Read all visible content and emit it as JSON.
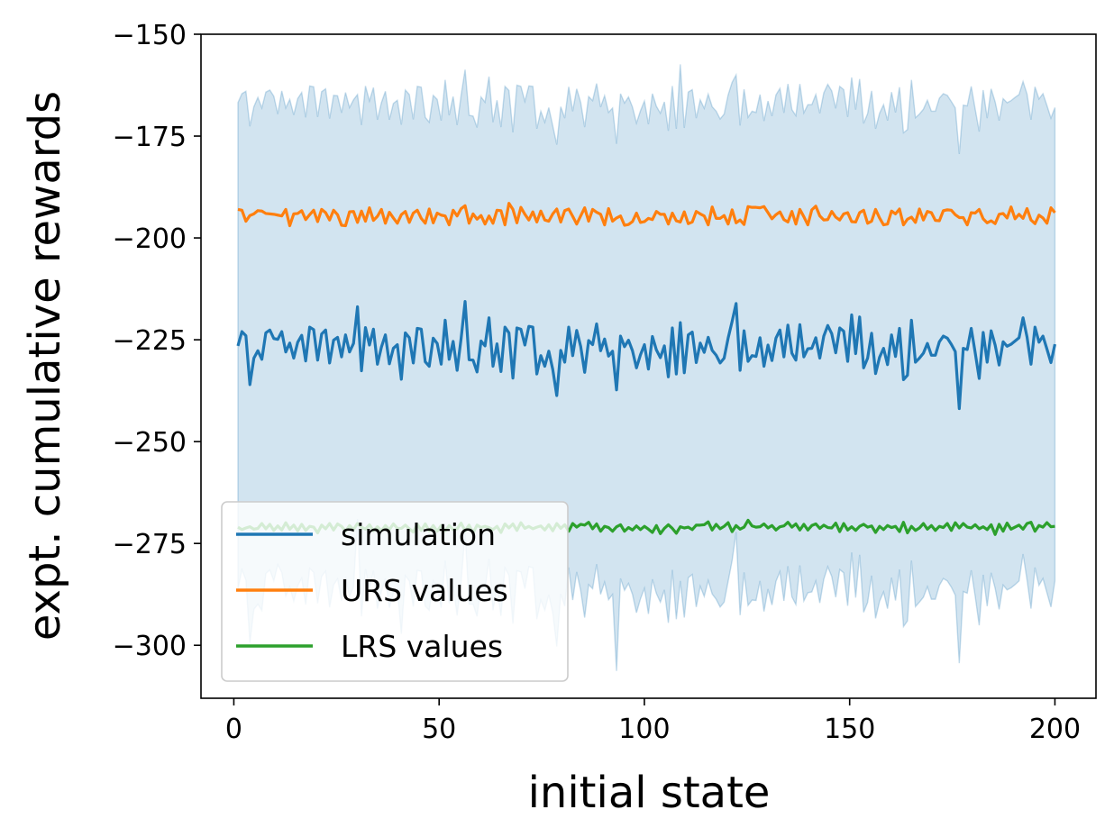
{
  "chart_data": {
    "type": "line",
    "title": "",
    "xlabel": "initial state",
    "ylabel": "expt. cumulative rewards",
    "xlim": [
      -8,
      210
    ],
    "ylim": [
      -313,
      -150
    ],
    "xticks": [
      0,
      50,
      100,
      150,
      200
    ],
    "yticks": [
      -150,
      -175,
      -200,
      -225,
      -250,
      -275,
      -300
    ],
    "xtick_labels": [
      "0",
      "50",
      "100",
      "150",
      "200"
    ],
    "ytick_labels": [
      "−150",
      "−175",
      "−200",
      "−225",
      "−250",
      "−275",
      "−300"
    ],
    "grid": false,
    "legend_position": "lower-left",
    "x_start": 1,
    "x_end": 200,
    "series": [
      {
        "name": "simulation",
        "color": "#1f77b4",
        "values": [
          -226.5,
          -223.0,
          -224.0,
          -236.0,
          -229.5,
          -227.7,
          -229.8,
          -223.3,
          -222.6,
          -224.7,
          -224.9,
          -223.0,
          -228.0,
          -225.8,
          -229.5,
          -225.6,
          -223.9,
          -230.2,
          -221.9,
          -222.5,
          -230.0,
          -223.6,
          -222.6,
          -230.7,
          -225.1,
          -224.4,
          -229.2,
          -223.8,
          -228.0,
          -225.9,
          -216.9,
          -232.6,
          -222.0,
          -226.3,
          -222.4,
          -231.0,
          -226.8,
          -223.8,
          -230.9,
          -227.1,
          -226.2,
          -234.7,
          -223.3,
          -224.5,
          -230.7,
          -222.2,
          -222.4,
          -230.4,
          -231.5,
          -224.6,
          -225.9,
          -231.0,
          -220.2,
          -229.8,
          -225.4,
          -232.5,
          -224.7,
          -215.6,
          -229.9,
          -230.0,
          -232.9,
          -225.3,
          -226.5,
          -219.6,
          -231.5,
          -226.0,
          -232.8,
          -221.9,
          -223.3,
          -234.4,
          -222.1,
          -222.4,
          -226.3,
          -221.7,
          -221.9,
          -233.4,
          -228.9,
          -231.5,
          -227.8,
          -232.3,
          -238.7,
          -227.6,
          -230.5,
          -221.9,
          -228.9,
          -222.7,
          -226.6,
          -233.0,
          -225.2,
          -226.2,
          -221.1,
          -227.7,
          -224.8,
          -229.0,
          -227.8,
          -237.3,
          -224.1,
          -226.7,
          -225.1,
          -227.7,
          -231.9,
          -228.7,
          -226.2,
          -232.2,
          -224.2,
          -227.5,
          -229.4,
          -226.5,
          -234.1,
          -222.1,
          -233.4,
          -220.8,
          -233.1,
          -223.8,
          -223.1,
          -230.6,
          -225.8,
          -228.1,
          -224.4,
          -227.6,
          -228.8,
          -230.7,
          -229.5,
          -224.6,
          -220.5,
          -216.1,
          -232.5,
          -222.8,
          -230.3,
          -228.9,
          -229.1,
          -224.5,
          -231.5,
          -226.3,
          -230.1,
          -224.6,
          -222.6,
          -229.2,
          -221.4,
          -228.3,
          -230.0,
          -221.3,
          -229.2,
          -227.2,
          -227.1,
          -224.5,
          -229.5,
          -224.1,
          -221.5,
          -223.5,
          -228.2,
          -222.1,
          -222.9,
          -230.3,
          -218.9,
          -228.4,
          -219.4,
          -231.9,
          -229.5,
          -223.4,
          -233.3,
          -229.3,
          -227.1,
          -231.1,
          -223.8,
          -229.1,
          -222.2,
          -234.8,
          -233.7,
          -220.2,
          -230.5,
          -229.5,
          -228.3,
          -225.9,
          -228.8,
          -228.8,
          -225.5,
          -224.1,
          -224.6,
          -226.1,
          -227.9,
          -241.9,
          -227.1,
          -227.4,
          -222.2,
          -228.2,
          -234.5,
          -223.2,
          -230.5,
          -222.8,
          -226.3,
          -231.2,
          -225.5,
          -226.6,
          -226.1,
          -225.3,
          -224.5,
          -219.6,
          -224.3,
          -231.0,
          -221.9,
          -225.6,
          -224.1,
          -227.3,
          -230.6,
          -226.1
        ],
        "upper": [
          -166.8,
          -164.6,
          -164.0,
          -172.6,
          -167.8,
          -165.5,
          -168.1,
          -164.2,
          -163.7,
          -165.2,
          -169.6,
          -163.9,
          -168.1,
          -166.0,
          -169.8,
          -165.8,
          -164.3,
          -170.4,
          -162.7,
          -162.9,
          -170.3,
          -164.1,
          -163.4,
          -170.7,
          -165.0,
          -165.1,
          -169.3,
          -164.3,
          -168.0,
          -166.1,
          -164.8,
          -172.3,
          -162.7,
          -166.4,
          -163.1,
          -171.0,
          -166.8,
          -164.0,
          -171.0,
          -167.0,
          -166.2,
          -172.2,
          -163.7,
          -164.8,
          -170.9,
          -162.8,
          -163.0,
          -170.4,
          -171.6,
          -165.0,
          -166.0,
          -171.2,
          -161.2,
          -169.9,
          -165.3,
          -172.3,
          -165.0,
          -158.7,
          -169.9,
          -170.1,
          -172.9,
          -165.4,
          -166.7,
          -160.4,
          -171.6,
          -166.2,
          -172.8,
          -162.8,
          -163.8,
          -174.1,
          -162.5,
          -162.8,
          -166.5,
          -162.7,
          -162.8,
          -173.2,
          -168.9,
          -171.6,
          -168.0,
          -172.5,
          -177.1,
          -167.8,
          -170.6,
          -162.9,
          -168.9,
          -163.4,
          -166.7,
          -172.8,
          -165.3,
          -166.3,
          -162.1,
          -167.9,
          -165.1,
          -169.2,
          -168.1,
          -176.9,
          -164.6,
          -166.9,
          -165.4,
          -167.9,
          -171.8,
          -168.8,
          -166.4,
          -172.1,
          -164.6,
          -167.7,
          -169.4,
          -166.6,
          -173.7,
          -162.7,
          -173.2,
          -157.4,
          -173.0,
          -164.2,
          -163.6,
          -170.6,
          -166.1,
          -168.2,
          -164.7,
          -167.8,
          -168.9,
          -170.8,
          -169.6,
          -164.9,
          -161.8,
          -160.0,
          -172.4,
          -163.5,
          -170.4,
          -168.9,
          -169.2,
          -164.8,
          -171.3,
          -166.4,
          -170.1,
          -164.9,
          -163.3,
          -169.3,
          -162.2,
          -168.5,
          -170.0,
          -162.2,
          -169.3,
          -167.3,
          -167.3,
          -164.8,
          -169.4,
          -164.4,
          -162.3,
          -163.9,
          -168.2,
          -162.8,
          -163.6,
          -170.3,
          -160.6,
          -168.5,
          -161.0,
          -171.9,
          -169.5,
          -163.9,
          -173.2,
          -169.4,
          -167.3,
          -171.2,
          -164.2,
          -169.2,
          -163.0,
          -174.2,
          -173.4,
          -161.2,
          -170.5,
          -169.6,
          -168.4,
          -166.2,
          -168.9,
          -168.9,
          -165.7,
          -164.6,
          -165.0,
          -166.5,
          -168.1,
          -179.4,
          -167.4,
          -167.6,
          -162.8,
          -168.4,
          -173.9,
          -163.7,
          -170.6,
          -163.4,
          -166.6,
          -171.2,
          -165.8,
          -166.8,
          -166.3,
          -165.5,
          -164.8,
          -161.6,
          -164.7,
          -171.0,
          -162.9,
          -165.9,
          -164.6,
          -167.5,
          -170.6,
          -168.0
        ],
        "lower": [
          -286.2,
          -281.4,
          -284.0,
          -299.4,
          -291.2,
          -289.9,
          -291.5,
          -282.4,
          -281.5,
          -284.2,
          -280.2,
          -282.1,
          -287.9,
          -285.6,
          -289.2,
          -285.4,
          -283.5,
          -290.0,
          -281.1,
          -282.1,
          -289.7,
          -283.1,
          -281.8,
          -290.7,
          -285.2,
          -283.7,
          -289.1,
          -283.3,
          -288.0,
          -285.7,
          -269.0,
          -292.9,
          -281.3,
          -286.2,
          -281.7,
          -291.0,
          -286.8,
          -283.6,
          -290.8,
          -287.2,
          -286.2,
          -297.2,
          -282.9,
          -284.2,
          -290.5,
          -281.6,
          -281.8,
          -290.4,
          -291.4,
          -284.2,
          -285.8,
          -290.8,
          -279.2,
          -289.7,
          -285.5,
          -292.7,
          -284.4,
          -272.5,
          -289.9,
          -289.9,
          -292.9,
          -285.2,
          -286.3,
          -278.8,
          -291.4,
          -285.8,
          -292.8,
          -281.0,
          -282.8,
          -294.7,
          -281.7,
          -282.0,
          -286.1,
          -280.7,
          -281.0,
          -293.6,
          -288.9,
          -291.4,
          -287.6,
          -292.1,
          -300.3,
          -287.4,
          -290.4,
          -280.9,
          -288.9,
          -282.0,
          -286.5,
          -293.2,
          -285.1,
          -286.1,
          -280.1,
          -287.5,
          -284.5,
          -288.8,
          -287.5,
          -306.3,
          -283.6,
          -286.5,
          -284.8,
          -287.5,
          -292.0,
          -288.6,
          -286.0,
          -292.3,
          -283.8,
          -287.3,
          -289.4,
          -286.4,
          -294.5,
          -281.5,
          -293.6,
          -284.2,
          -293.2,
          -283.4,
          -282.6,
          -290.6,
          -285.5,
          -288.0,
          -284.1,
          -287.4,
          -288.7,
          -290.6,
          -289.4,
          -284.3,
          -279.2,
          -272.2,
          -292.6,
          -282.1,
          -290.2,
          -288.9,
          -289.0,
          -284.2,
          -291.7,
          -286.2,
          -290.1,
          -284.3,
          -281.9,
          -289.1,
          -280.6,
          -288.1,
          -290.0,
          -280.4,
          -289.1,
          -287.1,
          -286.9,
          -284.2,
          -289.6,
          -283.8,
          -280.7,
          -283.1,
          -288.2,
          -281.4,
          -282.2,
          -290.3,
          -277.2,
          -288.3,
          -277.8,
          -291.9,
          -289.5,
          -282.9,
          -293.4,
          -289.2,
          -286.9,
          -291.0,
          -283.4,
          -289.0,
          -281.4,
          -295.4,
          -294.0,
          -279.2,
          -290.5,
          -289.4,
          -288.2,
          -285.6,
          -288.7,
          -288.7,
          -285.3,
          -283.6,
          -284.2,
          -285.7,
          -287.7,
          -304.4,
          -286.8,
          -287.2,
          -281.6,
          -288.0,
          -295.1,
          -282.7,
          -290.4,
          -282.2,
          -286.0,
          -291.2,
          -285.2,
          -286.4,
          -285.9,
          -285.1,
          -284.2,
          -277.6,
          -283.9,
          -291.0,
          -280.9,
          -285.3,
          -283.6,
          -287.1,
          -290.6,
          -284.2
        ]
      },
      {
        "name": "URS values",
        "color": "#ff7f0e",
        "values": [
          -193.0,
          -193.2,
          -195.9,
          -194.5,
          -194.1,
          -193.3,
          -193.4,
          -194.0,
          -194.1,
          -194.2,
          -194.4,
          -194.6,
          -193.0,
          -197.0,
          -194.1,
          -194.0,
          -193.3,
          -195.5,
          -194.3,
          -193.2,
          -196.0,
          -193.0,
          -193.8,
          -195.6,
          -193.2,
          -194.3,
          -196.9,
          -197.0,
          -193.6,
          -193.5,
          -196.2,
          -193.4,
          -195.9,
          -192.6,
          -195.7,
          -194.7,
          -193.0,
          -196.4,
          -193.7,
          -195.1,
          -196.4,
          -194.3,
          -193.5,
          -196.2,
          -193.9,
          -193.2,
          -195.2,
          -196.4,
          -192.9,
          -196.3,
          -193.9,
          -194.4,
          -194.6,
          -196.8,
          -193.2,
          -194.6,
          -192.8,
          -192.1,
          -196.4,
          -194.1,
          -195.4,
          -194.5,
          -196.6,
          -194.6,
          -196.4,
          -193.2,
          -193.3,
          -196.8,
          -191.5,
          -193.0,
          -196.3,
          -192.5,
          -194.2,
          -195.6,
          -193.6,
          -196.1,
          -193.4,
          -195.6,
          -195.9,
          -194.1,
          -192.9,
          -196.1,
          -193.3,
          -192.9,
          -194.7,
          -196.6,
          -194.6,
          -192.6,
          -195.9,
          -193.0,
          -193.7,
          -194.2,
          -196.8,
          -192.8,
          -195.9,
          -195.1,
          -194.6,
          -196.9,
          -196.7,
          -196.0,
          -193.9,
          -196.2,
          -196.0,
          -195.2,
          -195.5,
          -193.5,
          -194.2,
          -194.2,
          -196.6,
          -193.9,
          -195.8,
          -196.1,
          -193.6,
          -196.5,
          -196.1,
          -193.5,
          -194.1,
          -194.6,
          -196.8,
          -192.4,
          -195.2,
          -195.2,
          -194.5,
          -196.6,
          -193.1,
          -196.3,
          -195.6,
          -196.7,
          -192.3,
          -192.5,
          -192.5,
          -192.6,
          -192.3,
          -193.8,
          -195.3,
          -194.3,
          -193.6,
          -195.5,
          -196.1,
          -193.5,
          -196.6,
          -193.0,
          -194.8,
          -196.8,
          -193.1,
          -192.2,
          -194.6,
          -195.6,
          -195.5,
          -193.5,
          -194.9,
          -195.6,
          -194.1,
          -193.8,
          -196.0,
          -196.1,
          -193.8,
          -193.2,
          -196.4,
          -195.9,
          -193.0,
          -195.1,
          -196.8,
          -196.6,
          -193.4,
          -194.1,
          -192.9,
          -196.8,
          -195.4,
          -194.9,
          -196.2,
          -192.9,
          -195.6,
          -193.5,
          -193.8,
          -195.7,
          -195.8,
          -193.3,
          -193.1,
          -193.2,
          -194.3,
          -195.0,
          -195.0,
          -196.8,
          -193.8,
          -193.9,
          -193.0,
          -195.3,
          -196.3,
          -195.8,
          -196.5,
          -194.2,
          -194.0,
          -195.1,
          -192.4,
          -195.3,
          -194.2,
          -195.2,
          -192.8,
          -195.6,
          -196.5,
          -194.4,
          -195.1,
          -196.4,
          -192.6,
          -193.8,
          -194.8,
          -195.2
        ]
      },
      {
        "name": "LRS values",
        "color": "#2ca02c",
        "values": [
          -271.0,
          -271.6,
          -271.2,
          -270.9,
          -271.5,
          -271.3,
          -270.1,
          -271.4,
          -270.3,
          -271.8,
          -270.7,
          -271.7,
          -269.9,
          -271.5,
          -270.5,
          -271.9,
          -270.3,
          -271.8,
          -270.8,
          -271.0,
          -272.4,
          -270.5,
          -271.4,
          -270.1,
          -271.7,
          -270.2,
          -270.8,
          -272.0,
          -270.6,
          -271.6,
          -270.1,
          -271.0,
          -271.5,
          -270.4,
          -271.9,
          -270.9,
          -271.9,
          -270.6,
          -271.6,
          -270.2,
          -271.3,
          -271.3,
          -270.5,
          -271.4,
          -272.2,
          -270.3,
          -271.8,
          -270.2,
          -271.9,
          -270.6,
          -272.0,
          -270.6,
          -271.9,
          -270.6,
          -271.6,
          -271.4,
          -270.0,
          -271.9,
          -270.5,
          -272.4,
          -270.5,
          -271.1,
          -270.8,
          -271.1,
          -271.6,
          -270.8,
          -272.3,
          -270.2,
          -271.2,
          -270.2,
          -271.8,
          -269.9,
          -271.3,
          -270.8,
          -271.4,
          -271.0,
          -270.7,
          -271.7,
          -270.4,
          -271.9,
          -270.1,
          -271.3,
          -270.4,
          -272.0,
          -270.1,
          -271.0,
          -270.3,
          -270.5,
          -269.8,
          -271.4,
          -270.2,
          -272.0,
          -270.8,
          -271.1,
          -272.0,
          -270.9,
          -270.4,
          -272.0,
          -271.1,
          -271.7,
          -270.7,
          -271.6,
          -270.8,
          -271.5,
          -272.3,
          -270.6,
          -272.6,
          -271.3,
          -270.4,
          -271.3,
          -272.5,
          -270.9,
          -271.2,
          -271.0,
          -271.6,
          -270.5,
          -270.5,
          -270.4,
          -269.7,
          -271.7,
          -270.3,
          -271.4,
          -270.8,
          -269.9,
          -272.1,
          -270.6,
          -271.5,
          -271.0,
          -269.3,
          -270.7,
          -271.0,
          -270.9,
          -270.2,
          -271.2,
          -270.6,
          -271.7,
          -270.9,
          -270.7,
          -269.8,
          -271.0,
          -270.2,
          -271.7,
          -270.3,
          -271.7,
          -270.6,
          -270.2,
          -271.3,
          -270.5,
          -271.1,
          -271.2,
          -270.0,
          -272.1,
          -270.1,
          -271.7,
          -270.9,
          -271.8,
          -270.8,
          -270.3,
          -271.0,
          -270.7,
          -272.3,
          -270.8,
          -271.6,
          -270.6,
          -271.1,
          -270.8,
          -272.1,
          -269.8,
          -272.4,
          -270.8,
          -271.8,
          -271.2,
          -270.1,
          -271.5,
          -270.6,
          -271.8,
          -270.8,
          -271.1,
          -270.1,
          -271.8,
          -269.9,
          -271.2,
          -270.1,
          -271.0,
          -271.2,
          -270.4,
          -271.4,
          -270.9,
          -271.6,
          -270.4,
          -272.8,
          -270.3,
          -272.0,
          -270.0,
          -271.5,
          -271.0,
          -270.5,
          -271.5,
          -270.1,
          -269.8,
          -272.0,
          -270.6,
          -271.0,
          -269.9,
          -270.9,
          -270.8
        ]
      }
    ]
  }
}
